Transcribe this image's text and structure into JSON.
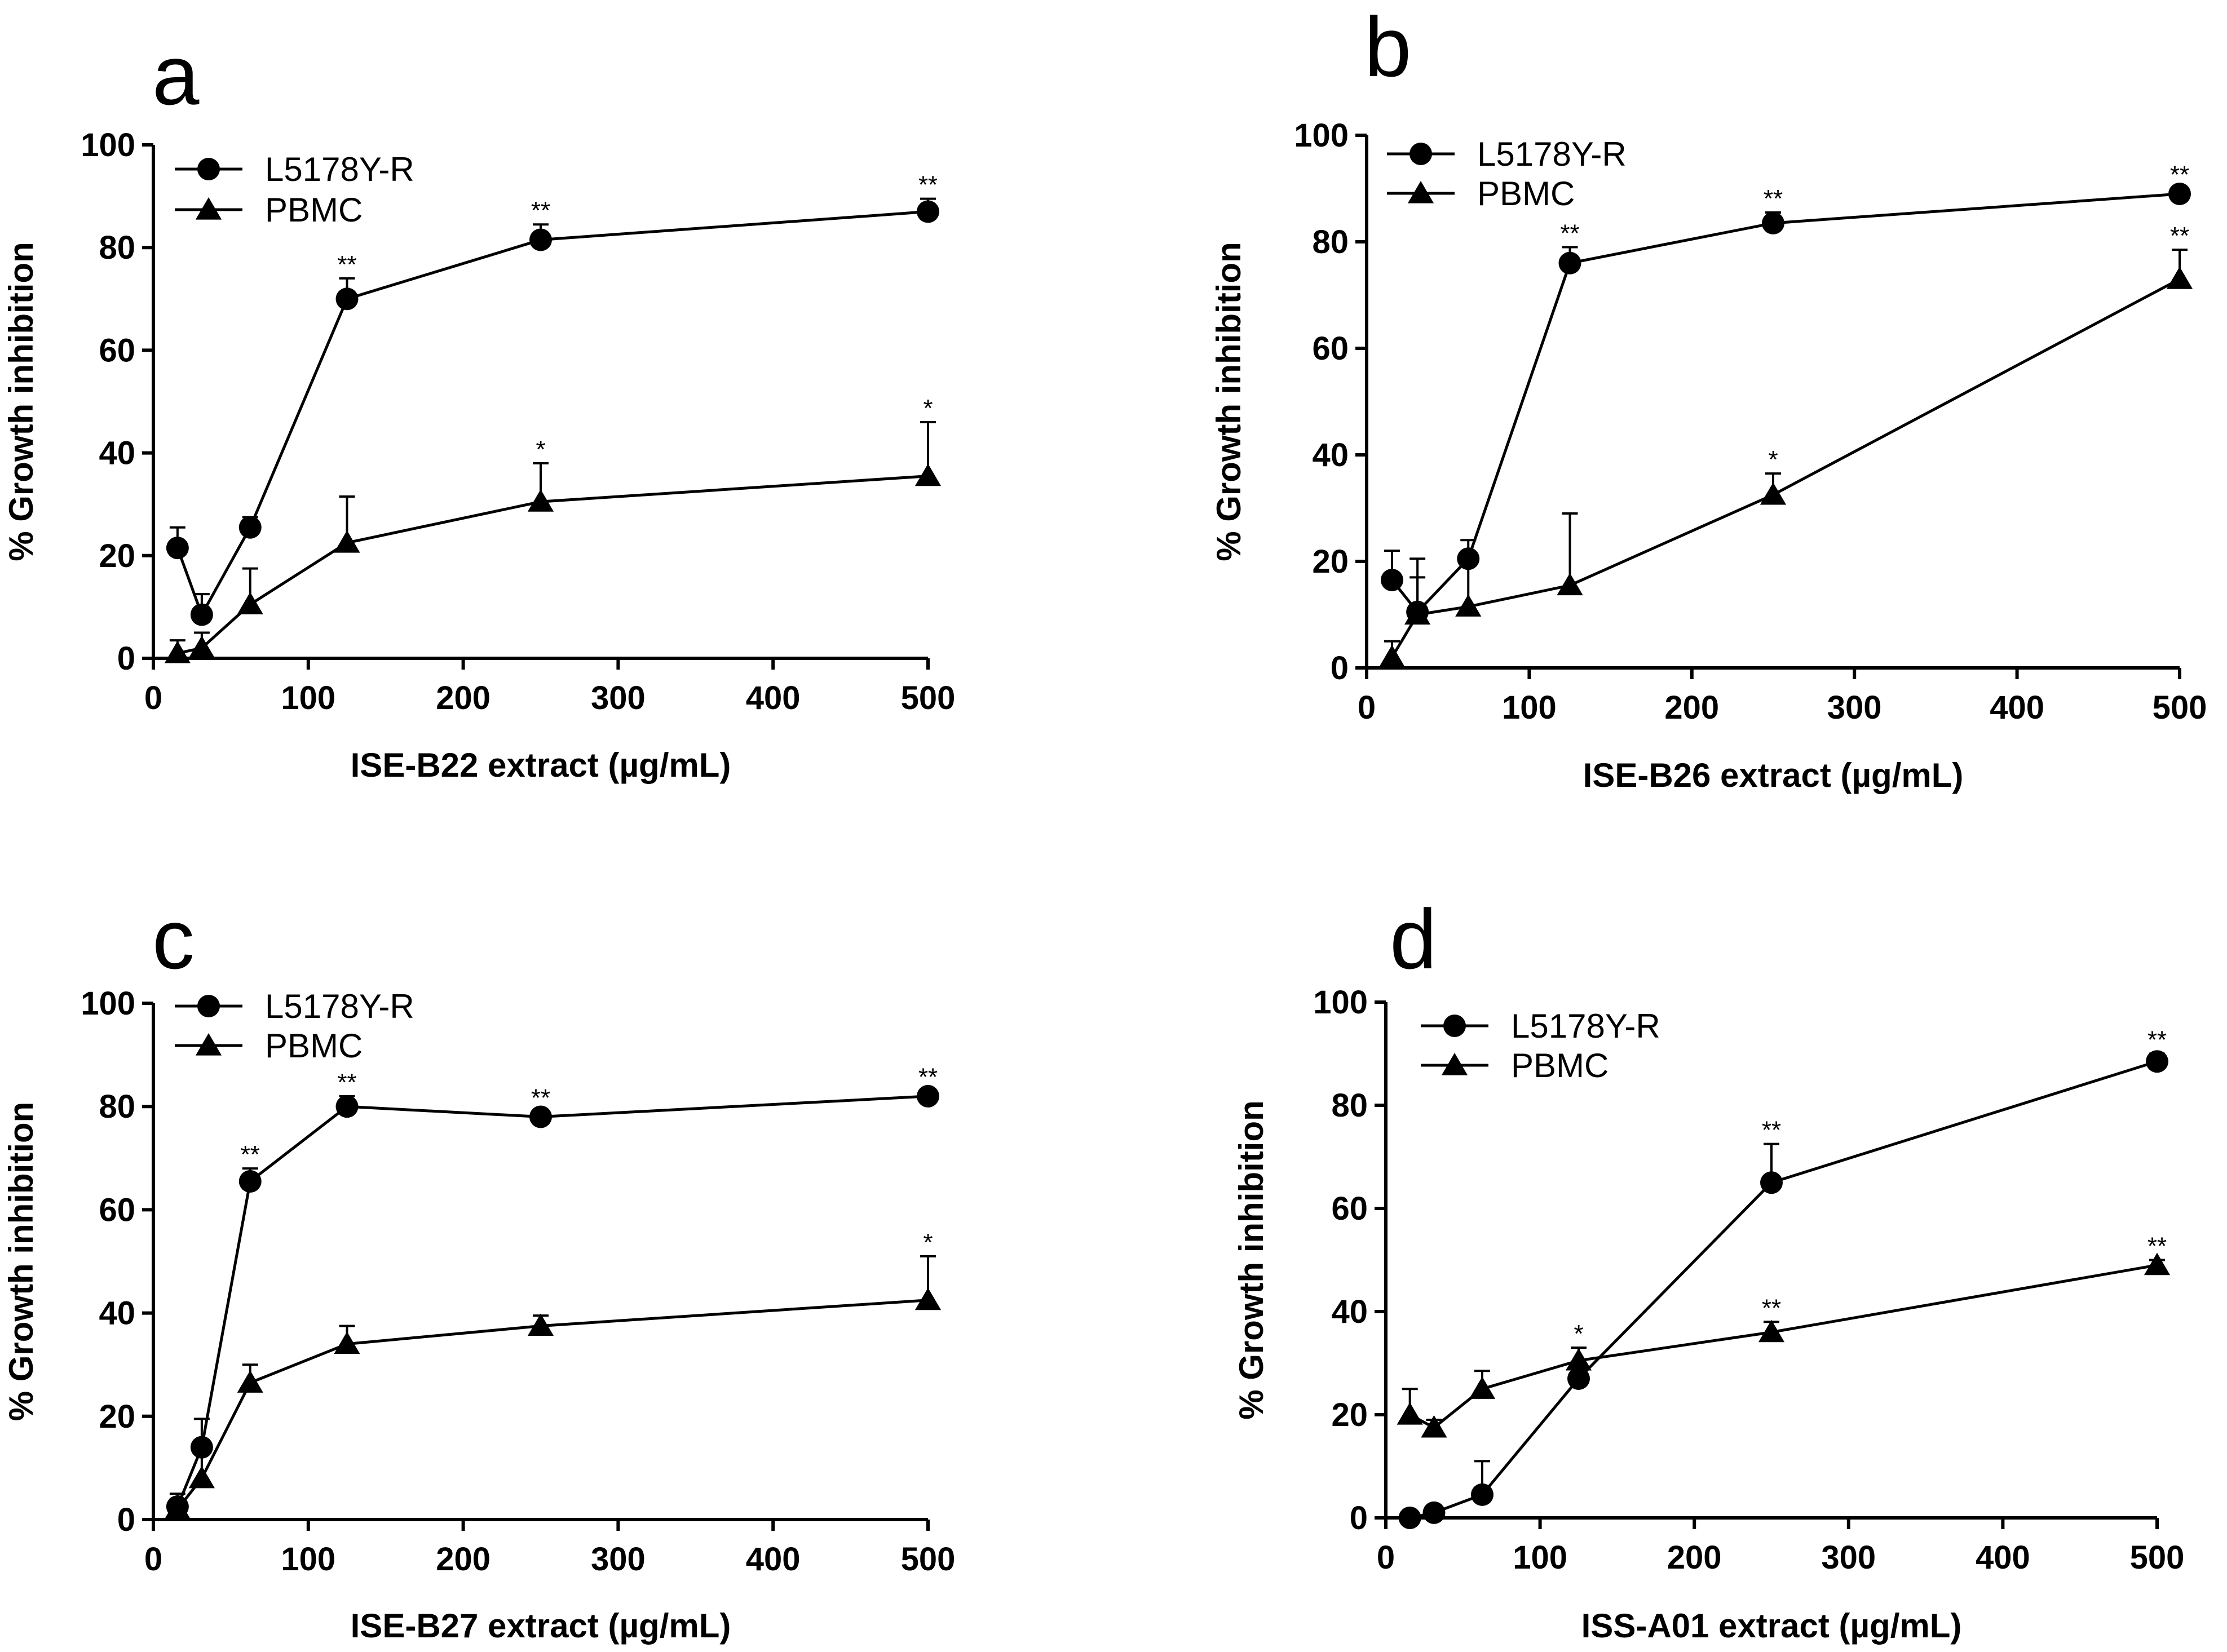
{
  "chart_data": [
    {
      "panel": "a",
      "type": "line",
      "xlabel": "ISE-B22 extract (µg/mL)",
      "ylabel": "% Growth inhibition",
      "xlim": [
        0,
        500
      ],
      "ylim": [
        0,
        100
      ],
      "xticks": [
        0,
        100,
        200,
        300,
        400,
        500
      ],
      "yticks": [
        0,
        20,
        40,
        60,
        80,
        100
      ],
      "legend_position": "top-left",
      "series": [
        {
          "name": "L5178Y-R",
          "marker": "circle",
          "points": [
            {
              "x": 15.6,
              "y": 21.5,
              "err": 4,
              "sig": ""
            },
            {
              "x": 31.25,
              "y": 8.5,
              "err": 4,
              "sig": ""
            },
            {
              "x": 62.5,
              "y": 25.5,
              "err": 2,
              "sig": ""
            },
            {
              "x": 125,
              "y": 70,
              "err": 4,
              "sig": "**"
            },
            {
              "x": 250,
              "y": 81.5,
              "err": 3,
              "sig": "**"
            },
            {
              "x": 500,
              "y": 87,
              "err": 2.5,
              "sig": "**"
            }
          ]
        },
        {
          "name": "PBMC",
          "marker": "triangle",
          "points": [
            {
              "x": 15.6,
              "y": 1,
              "err": 2.5,
              "sig": ""
            },
            {
              "x": 31.25,
              "y": 2,
              "err": 3,
              "sig": ""
            },
            {
              "x": 62.5,
              "y": 10.5,
              "err": 7,
              "sig": ""
            },
            {
              "x": 125,
              "y": 22.5,
              "err": 9,
              "sig": ""
            },
            {
              "x": 250,
              "y": 30.5,
              "err": 7.5,
              "sig": "*"
            },
            {
              "x": 500,
              "y": 35.5,
              "err": 10.5,
              "sig": "*"
            }
          ]
        }
      ]
    },
    {
      "panel": "b",
      "type": "line",
      "xlabel": "ISE-B26 extract (µg/mL)",
      "ylabel": "% Growth inhibition",
      "xlim": [
        0,
        500
      ],
      "ylim": [
        0,
        100
      ],
      "xticks": [
        0,
        100,
        200,
        300,
        400,
        500
      ],
      "yticks": [
        0,
        20,
        40,
        60,
        80,
        100
      ],
      "legend_position": "top-left",
      "series": [
        {
          "name": "L5178Y-R",
          "marker": "circle",
          "points": [
            {
              "x": 15.6,
              "y": 16.5,
              "err": 5.5,
              "sig": ""
            },
            {
              "x": 31.25,
              "y": 10.5,
              "err": 10,
              "sig": ""
            },
            {
              "x": 62.5,
              "y": 20.5,
              "err": 3.5,
              "sig": ""
            },
            {
              "x": 125,
              "y": 76,
              "err": 3,
              "sig": "**"
            },
            {
              "x": 250,
              "y": 83.5,
              "err": 2,
              "sig": "**"
            },
            {
              "x": 500,
              "y": 89,
              "err": 1,
              "sig": "**"
            }
          ]
        },
        {
          "name": "PBMC",
          "marker": "triangle",
          "points": [
            {
              "x": 15.6,
              "y": 2,
              "err": 3,
              "sig": ""
            },
            {
              "x": 31.25,
              "y": 10,
              "err": 7,
              "sig": ""
            },
            {
              "x": 62.5,
              "y": 11.5,
              "err": 9,
              "sig": ""
            },
            {
              "x": 125,
              "y": 15.5,
              "err": 13.5,
              "sig": ""
            },
            {
              "x": 250,
              "y": 32.5,
              "err": 4,
              "sig": "*"
            },
            {
              "x": 500,
              "y": 73,
              "err": 5.5,
              "sig": "**"
            }
          ]
        }
      ]
    },
    {
      "panel": "c",
      "type": "line",
      "xlabel": "ISE-B27 extract (µg/mL)",
      "ylabel": "% Growth inhibition",
      "xlim": [
        0,
        500
      ],
      "ylim": [
        0,
        100
      ],
      "xticks": [
        0,
        100,
        200,
        300,
        400,
        500
      ],
      "yticks": [
        0,
        20,
        40,
        60,
        80,
        100
      ],
      "legend_position": "top-left",
      "series": [
        {
          "name": "L5178Y-R",
          "marker": "circle",
          "points": [
            {
              "x": 15.6,
              "y": 2.5,
              "err": 2.5,
              "sig": ""
            },
            {
              "x": 31.25,
              "y": 14,
              "err": 5.5,
              "sig": ""
            },
            {
              "x": 62.5,
              "y": 65.5,
              "err": 2.5,
              "sig": "**"
            },
            {
              "x": 125,
              "y": 80,
              "err": 2,
              "sig": "**"
            },
            {
              "x": 250,
              "y": 78,
              "err": 1,
              "sig": "**"
            },
            {
              "x": 500,
              "y": 82,
              "err": 1,
              "sig": "**"
            }
          ]
        },
        {
          "name": "PBMC",
          "marker": "triangle",
          "points": [
            {
              "x": 15.6,
              "y": 2,
              "err": 2,
              "sig": ""
            },
            {
              "x": 31.25,
              "y": 8,
              "err": 7,
              "sig": ""
            },
            {
              "x": 62.5,
              "y": 26.5,
              "err": 3.5,
              "sig": ""
            },
            {
              "x": 125,
              "y": 34,
              "err": 3.5,
              "sig": ""
            },
            {
              "x": 250,
              "y": 37.5,
              "err": 2,
              "sig": ""
            },
            {
              "x": 500,
              "y": 42.5,
              "err": 8.5,
              "sig": "*"
            }
          ]
        }
      ]
    },
    {
      "panel": "d",
      "type": "line",
      "xlabel": "ISS-A01 extract (µg/mL)",
      "ylabel": "% Growth inhibition",
      "xlim": [
        0,
        500
      ],
      "ylim": [
        0,
        100
      ],
      "xticks": [
        0,
        100,
        200,
        300,
        400,
        500
      ],
      "yticks": [
        0,
        20,
        40,
        60,
        80,
        100
      ],
      "legend_position": "top-left",
      "series": [
        {
          "name": "L5178Y-R",
          "marker": "circle",
          "points": [
            {
              "x": 15.6,
              "y": 0,
              "err": 0.5,
              "sig": ""
            },
            {
              "x": 31.25,
              "y": 1,
              "err": 0.5,
              "sig": ""
            },
            {
              "x": 62.5,
              "y": 4.5,
              "err": 6.5,
              "sig": ""
            },
            {
              "x": 125,
              "y": 27,
              "err": 3,
              "sig": ""
            },
            {
              "x": 250,
              "y": 65,
              "err": 7.5,
              "sig": "**"
            },
            {
              "x": 500,
              "y": 88.5,
              "err": 1.5,
              "sig": "**"
            }
          ]
        },
        {
          "name": "PBMC",
          "marker": "triangle",
          "points": [
            {
              "x": 15.6,
              "y": 20,
              "err": 5,
              "sig": ""
            },
            {
              "x": 31.25,
              "y": 17.5,
              "err": 1.5,
              "sig": ""
            },
            {
              "x": 62.5,
              "y": 25,
              "err": 3.5,
              "sig": ""
            },
            {
              "x": 125,
              "y": 30.5,
              "err": 2.5,
              "sig": "*"
            },
            {
              "x": 250,
              "y": 36,
              "err": 2,
              "sig": "**"
            },
            {
              "x": 500,
              "y": 49,
              "err": 1,
              "sig": "**"
            }
          ]
        }
      ]
    }
  ]
}
